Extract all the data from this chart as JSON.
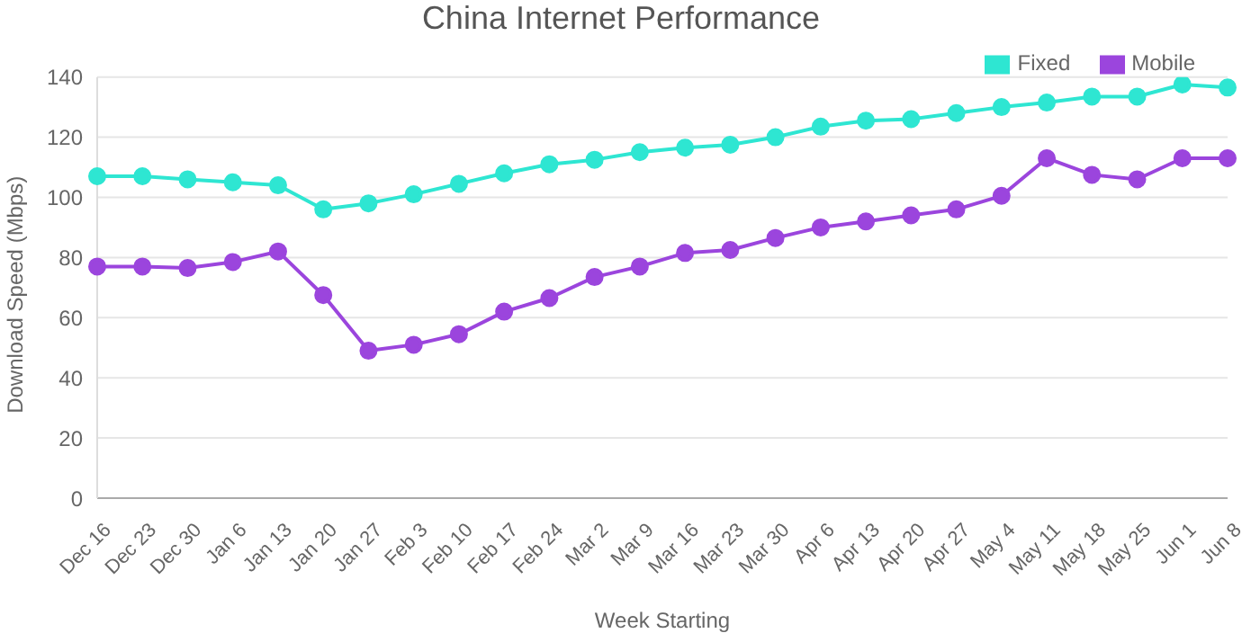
{
  "chart_data": {
    "type": "line",
    "title": "China Internet Performance",
    "xlabel": "Week Starting",
    "ylabel": "Download Speed (Mbps)",
    "categories": [
      "Dec 16",
      "Dec 23",
      "Dec 30",
      "Jan 6",
      "Jan 13",
      "Jan 20",
      "Jan 27",
      "Feb 3",
      "Feb 10",
      "Feb 17",
      "Feb 24",
      "Mar 2",
      "Mar 9",
      "Mar 16",
      "Mar 23",
      "Mar 30",
      "Apr 6",
      "Apr 13",
      "Apr 20",
      "Apr 27",
      "May 4",
      "May 11",
      "May 18",
      "May 25",
      "Jun 1",
      "Jun 8"
    ],
    "series": [
      {
        "name": "Fixed",
        "color": "#2ee6d2",
        "values": [
          107,
          107,
          106,
          105,
          104,
          96,
          98,
          101,
          104.5,
          108,
          111,
          112.5,
          115,
          116.5,
          117.5,
          120,
          123.5,
          125.5,
          126,
          128,
          130,
          131.5,
          133.5,
          133.5,
          137.5,
          136.5
        ]
      },
      {
        "name": "Mobile",
        "color": "#9b45dd",
        "values": [
          77,
          77,
          76.5,
          78.5,
          82,
          67.5,
          49,
          51,
          54.5,
          62,
          66.5,
          73.5,
          77,
          81.5,
          82.5,
          86.5,
          90,
          92,
          94,
          96,
          100.5,
          113,
          107.5,
          106,
          113,
          113
        ]
      }
    ],
    "ylim": [
      0,
      140
    ],
    "yticks": [
      0,
      20,
      40,
      60,
      80,
      100,
      120,
      140
    ],
    "grid": "y",
    "legend": "top right",
    "marker": "circle",
    "line_style": "solid"
  }
}
